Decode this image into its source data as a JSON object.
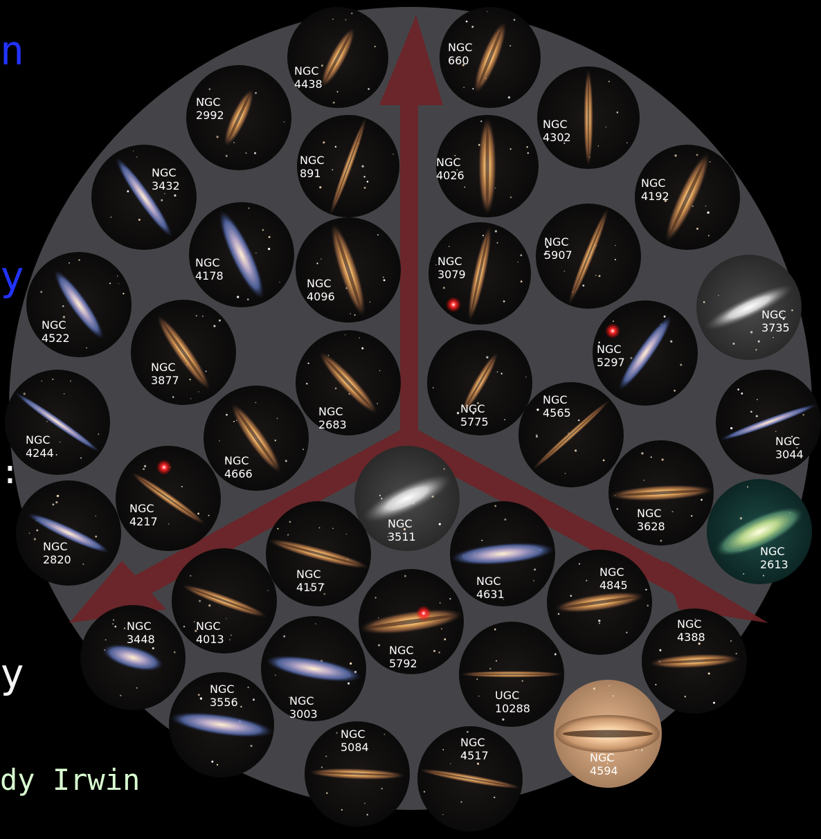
{
  "palette": {
    "background": "#000000",
    "disc": "#444448",
    "arrow": "#6e2428",
    "label": "#ffffff",
    "slide_text_blue": "#2233ff",
    "slide_text_green": "#d9ffd2"
  },
  "side_text": {
    "fragment_n": "n",
    "fragment_y_blue": "y",
    "fragment_colon": ":",
    "fragment_y_white": "y",
    "credit": "dy Irwin"
  },
  "galaxies": [
    {
      "id": "4438",
      "label": [
        "NGC",
        "4438"
      ],
      "tint": "warm"
    },
    {
      "id": "660",
      "label": [
        "NGC",
        "660"
      ],
      "tint": "warm"
    },
    {
      "id": "2992",
      "label": [
        "NGC",
        "2992"
      ],
      "tint": "warm"
    },
    {
      "id": "891",
      "label": [
        "NGC",
        "891"
      ],
      "tint": "warm"
    },
    {
      "id": "4026",
      "label": [
        "NGC",
        "4026"
      ],
      "tint": "warm"
    },
    {
      "id": "4302",
      "label": [
        "NGC",
        "4302"
      ],
      "tint": "warm"
    },
    {
      "id": "3432",
      "label": [
        "NGC",
        "3432"
      ],
      "tint": "blue"
    },
    {
      "id": "4192",
      "label": [
        "NGC",
        "4192"
      ],
      "tint": "warm"
    },
    {
      "id": "4178",
      "label": [
        "NGC",
        "4178"
      ],
      "tint": "blue"
    },
    {
      "id": "4096",
      "label": [
        "NGC",
        "4096"
      ],
      "tint": "warm"
    },
    {
      "id": "3079",
      "label": [
        "NGC",
        "3079"
      ],
      "tint": "warm"
    },
    {
      "id": "5907",
      "label": [
        "NGC",
        "5907"
      ],
      "tint": "warm"
    },
    {
      "id": "4522",
      "label": [
        "NGC",
        "4522"
      ],
      "tint": "blue"
    },
    {
      "id": "3735",
      "label": [
        "NGC",
        "3735"
      ],
      "tint": "gray"
    },
    {
      "id": "3877",
      "label": [
        "NGC",
        "3877"
      ],
      "tint": "warm"
    },
    {
      "id": "5297",
      "label": [
        "NGC",
        "5297"
      ],
      "tint": "blue"
    },
    {
      "id": "2683",
      "label": [
        "NGC",
        "2683"
      ],
      "tint": "warm"
    },
    {
      "id": "5775",
      "label": [
        "NGC",
        "5775"
      ],
      "tint": "warm"
    },
    {
      "id": "4565",
      "label": [
        "NGC",
        "4565"
      ],
      "tint": "warm"
    },
    {
      "id": "4244",
      "label": [
        "NGC",
        "4244"
      ],
      "tint": "blue"
    },
    {
      "id": "3044",
      "label": [
        "NGC",
        "3044"
      ],
      "tint": "blue"
    },
    {
      "id": "4666",
      "label": [
        "NGC",
        "4666"
      ],
      "tint": "warm"
    },
    {
      "id": "4217",
      "label": [
        "NGC",
        "4217"
      ],
      "tint": "warm"
    },
    {
      "id": "3511",
      "label": [
        "NGC",
        "3511"
      ],
      "tint": "gray"
    },
    {
      "id": "3628",
      "label": [
        "NGC",
        "3628"
      ],
      "tint": "warm"
    },
    {
      "id": "2613",
      "label": [
        "NGC",
        "2613"
      ],
      "tint": "teal"
    },
    {
      "id": "2820",
      "label": [
        "NGC",
        "2820"
      ],
      "tint": "blue"
    },
    {
      "id": "4157",
      "label": [
        "NGC",
        "4157"
      ],
      "tint": "warm"
    },
    {
      "id": "4631",
      "label": [
        "NGC",
        "4631"
      ],
      "tint": "blue"
    },
    {
      "id": "4845",
      "label": [
        "NGC",
        "4845"
      ],
      "tint": "warm"
    },
    {
      "id": "4013",
      "label": [
        "NGC",
        "4013"
      ],
      "tint": "warm"
    },
    {
      "id": "5792",
      "label": [
        "NGC",
        "5792"
      ],
      "tint": "warm"
    },
    {
      "id": "3448",
      "label": [
        "NGC",
        "3448"
      ],
      "tint": "blue"
    },
    {
      "id": "4388",
      "label": [
        "NGC",
        "4388"
      ],
      "tint": "warm"
    },
    {
      "id": "3556",
      "label": [
        "NGC",
        "3556"
      ],
      "tint": "blue"
    },
    {
      "id": "3003",
      "label": [
        "NGC",
        "3003"
      ],
      "tint": "blue"
    },
    {
      "id": "10288",
      "label": [
        "UGC",
        "10288"
      ],
      "tint": "warm"
    },
    {
      "id": "5084",
      "label": [
        "NGC",
        "5084"
      ],
      "tint": "warm"
    },
    {
      "id": "4517",
      "label": [
        "NGC",
        "4517"
      ],
      "tint": "warm"
    },
    {
      "id": "4594",
      "label": [
        "NGC",
        "4594"
      ],
      "tint": "sombrero"
    }
  ]
}
